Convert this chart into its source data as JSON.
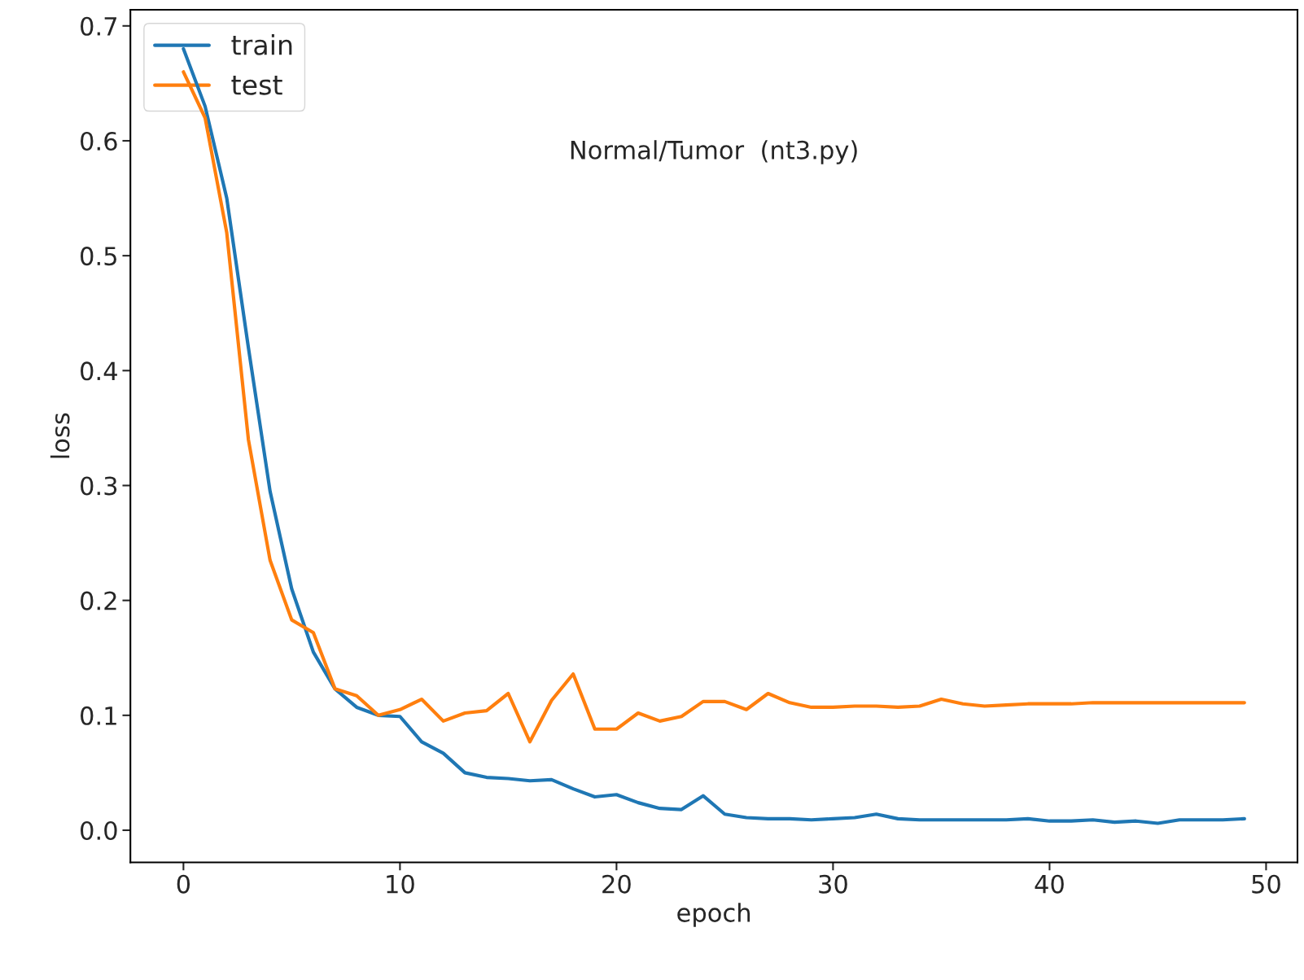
{
  "chart_data": {
    "type": "line",
    "xlabel": "epoch",
    "ylabel": "loss",
    "annotations": [
      "Normal/Tumor  (nt3.py)"
    ],
    "x": [
      0,
      1,
      2,
      3,
      4,
      5,
      6,
      7,
      8,
      9,
      10,
      11,
      12,
      13,
      14,
      15,
      16,
      17,
      18,
      19,
      20,
      21,
      22,
      23,
      24,
      25,
      26,
      27,
      28,
      29,
      30,
      31,
      32,
      33,
      34,
      35,
      36,
      37,
      38,
      39,
      40,
      41,
      42,
      43,
      44,
      45,
      46,
      47,
      48,
      49
    ],
    "series": [
      {
        "name": "train",
        "color": "#1f77b4",
        "values": [
          0.68,
          0.63,
          0.55,
          0.42,
          0.295,
          0.21,
          0.155,
          0.123,
          0.107,
          0.1,
          0.099,
          0.077,
          0.067,
          0.05,
          0.046,
          0.045,
          0.043,
          0.044,
          0.036,
          0.029,
          0.031,
          0.024,
          0.019,
          0.018,
          0.03,
          0.014,
          0.011,
          0.01,
          0.01,
          0.009,
          0.01,
          0.011,
          0.014,
          0.01,
          0.009,
          0.009,
          0.009,
          0.009,
          0.009,
          0.01,
          0.008,
          0.008,
          0.009,
          0.007,
          0.008,
          0.006,
          0.009,
          0.009,
          0.009,
          0.01
        ]
      },
      {
        "name": "test",
        "color": "#ff7f0e",
        "values": [
          0.66,
          0.62,
          0.52,
          0.34,
          0.235,
          0.183,
          0.172,
          0.123,
          0.117,
          0.1,
          0.105,
          0.114,
          0.095,
          0.102,
          0.104,
          0.119,
          0.077,
          0.113,
          0.136,
          0.088,
          0.088,
          0.102,
          0.095,
          0.099,
          0.112,
          0.112,
          0.105,
          0.119,
          0.111,
          0.107,
          0.107,
          0.108,
          0.108,
          0.107,
          0.108,
          0.114,
          0.11,
          0.108,
          0.109,
          0.11,
          0.11,
          0.11,
          0.111,
          0.111,
          0.111,
          0.111,
          0.111,
          0.111,
          0.111,
          0.111
        ]
      }
    ],
    "xlim": [
      -2.45,
      51.45
    ],
    "ylim": [
      -0.028,
      0.714
    ],
    "xticks": [
      0,
      10,
      20,
      30,
      40,
      50
    ],
    "yticks": [
      {
        "value": 0,
        "label": "0.0"
      },
      0.1,
      0.2,
      0.3,
      0.4,
      0.5,
      0.6,
      0.7
    ],
    "legend": "top left",
    "grid": false
  }
}
